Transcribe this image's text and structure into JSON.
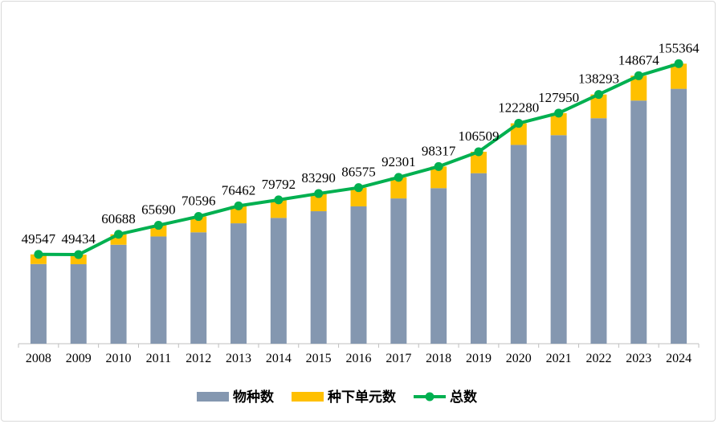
{
  "chart_data": {
    "type": "bar",
    "stacked": true,
    "categories": [
      "2008",
      "2009",
      "2010",
      "2011",
      "2012",
      "2013",
      "2014",
      "2015",
      "2016",
      "2017",
      "2018",
      "2019",
      "2020",
      "2021",
      "2022",
      "2023",
      "2024"
    ],
    "series": [
      {
        "name": "物种数",
        "type": "bar",
        "color": "#8497b0",
        "values": [
          44200,
          44100,
          54900,
          59500,
          61800,
          66800,
          69800,
          73500,
          76200,
          80600,
          86300,
          94600,
          110300,
          115700,
          125100,
          134900,
          141418
        ]
      },
      {
        "name": "种下单元数",
        "type": "bar",
        "color": "#ffc000",
        "values": [
          5347,
          5334,
          5788,
          6190,
          8796,
          9662,
          9992,
          9790,
          10375,
          11701,
          12017,
          11909,
          11980,
          12250,
          13193,
          13774,
          13946
        ]
      },
      {
        "name": "总数",
        "type": "line",
        "color": "#00b050",
        "values": [
          49547,
          49434,
          60688,
          65690,
          70596,
          76462,
          79792,
          83290,
          86575,
          92301,
          98317,
          106509,
          122280,
          127950,
          138293,
          148674,
          155364
        ]
      }
    ],
    "ylim": [
      0,
      180000
    ],
    "grid": false,
    "legend": "bottom",
    "title": "",
    "xlabel": "",
    "ylabel": ""
  }
}
